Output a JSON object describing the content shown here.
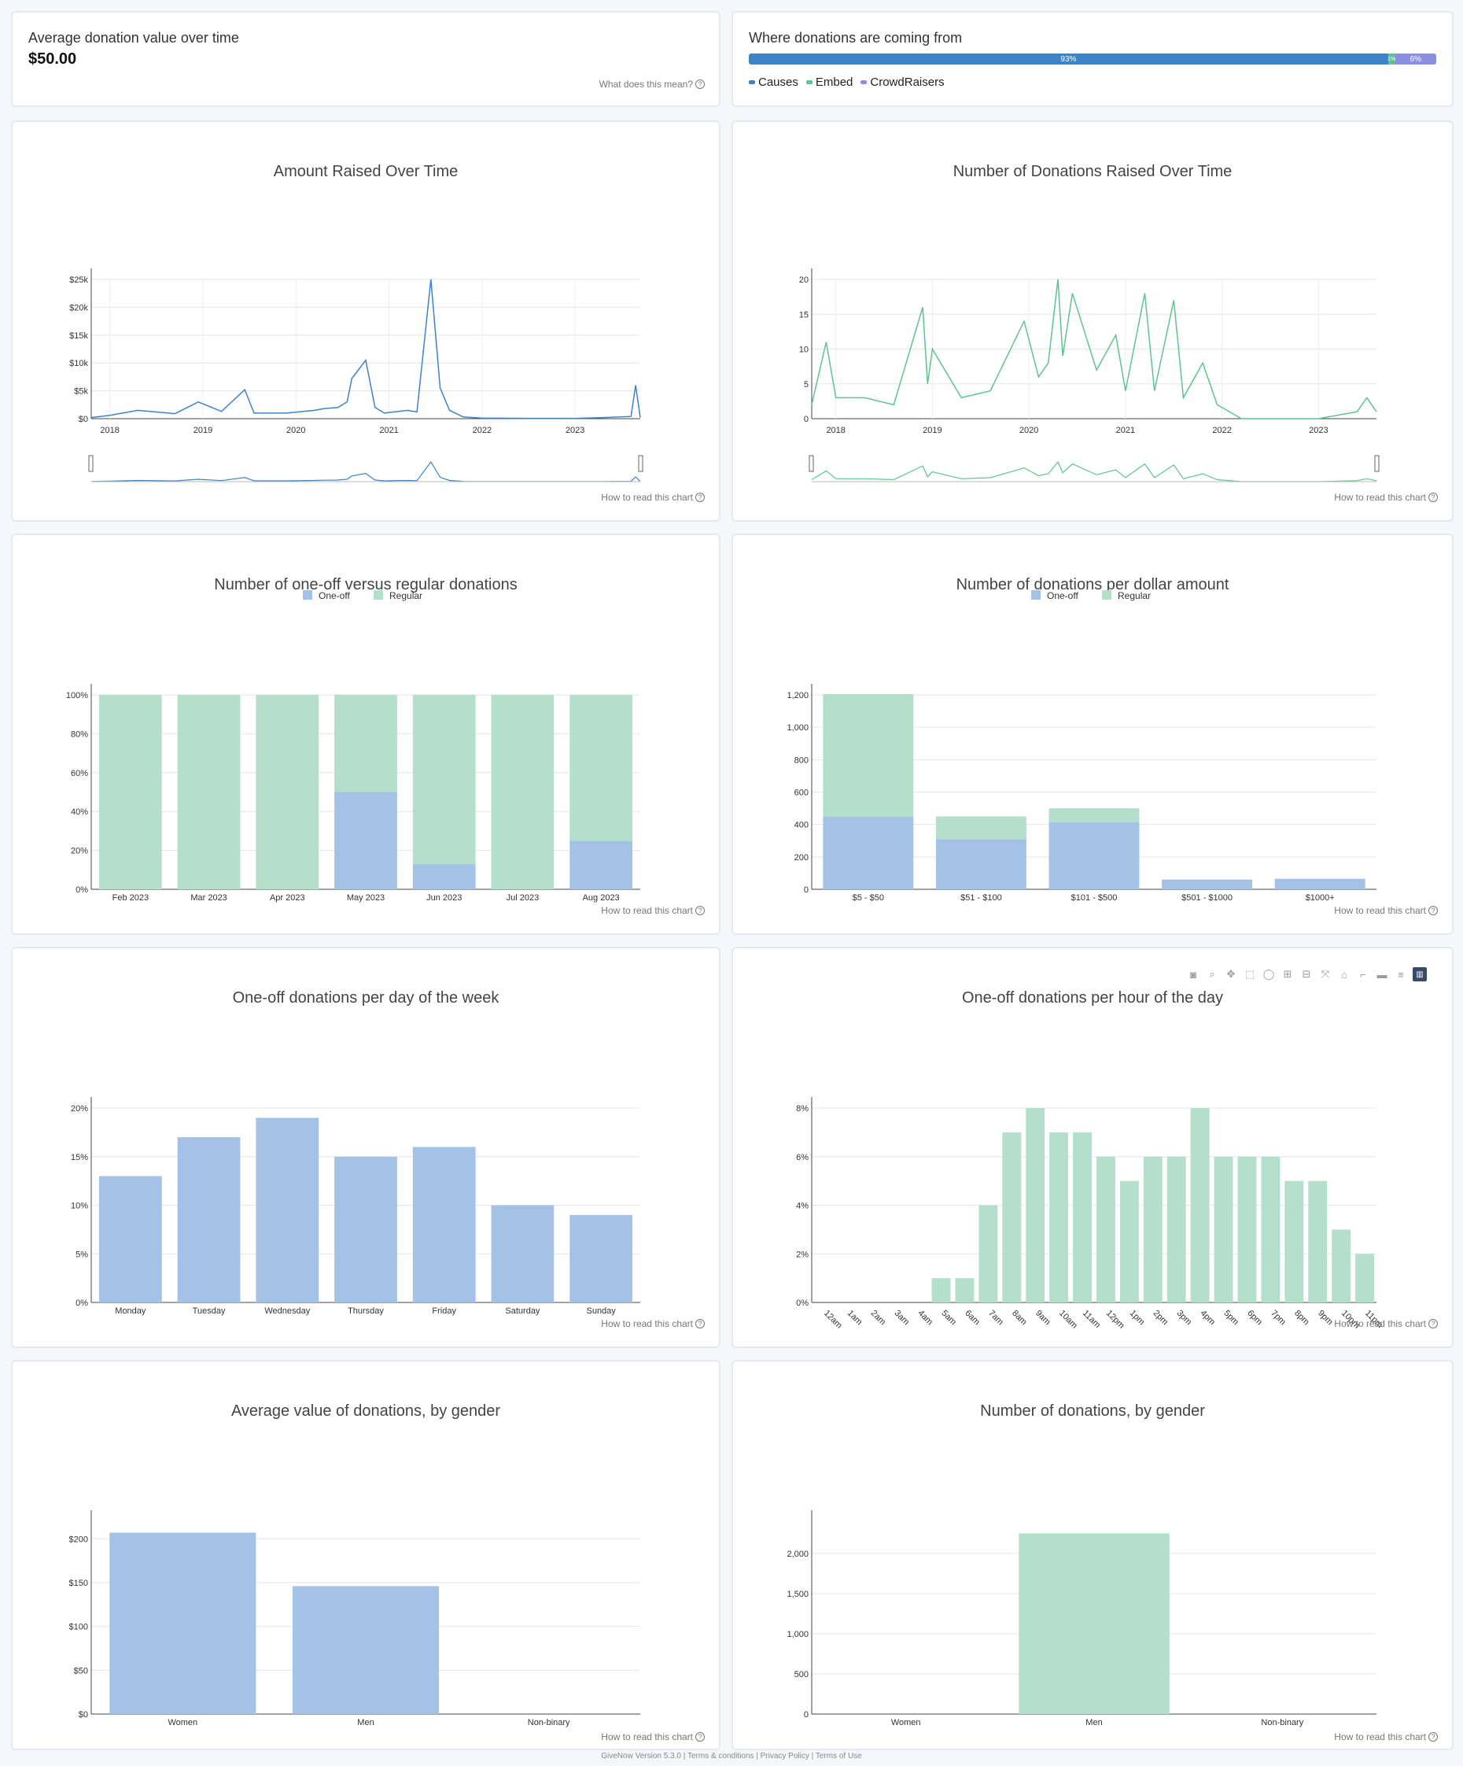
{
  "avg_card": {
    "title": "Average donation value over time",
    "value": "$50.00",
    "help": "What does this mean?"
  },
  "sources_card": {
    "title": "Where donations are coming from",
    "segments": [
      {
        "name": "Causes",
        "pct": 93,
        "label": "93%",
        "color": "#3d84c6"
      },
      {
        "name": "Embed",
        "pct": 1,
        "label": "1%",
        "color": "#5dc48f"
      },
      {
        "name": "CrowdRaisers",
        "pct": 6,
        "label": "6%",
        "color": "#8a8fe0"
      }
    ]
  },
  "help_label": "How to read this chart",
  "chart_data": [
    {
      "id": "amount",
      "type": "line",
      "title": "Amount Raised Over Time",
      "color": "#3d84c6",
      "x_ticks": [
        "2018",
        "2019",
        "2020",
        "2021",
        "2022",
        "2023"
      ],
      "y_ticks": [
        "$0",
        "$5k",
        "$10k",
        "$15k",
        "$20k",
        "$25k"
      ],
      "ylim": [
        0,
        25000
      ],
      "xlim": [
        2017.8,
        2023.7
      ],
      "x": [
        2017.8,
        2018.0,
        2018.3,
        2018.7,
        2018.95,
        2019.2,
        2019.45,
        2019.55,
        2019.9,
        2020.2,
        2020.3,
        2020.45,
        2020.55,
        2020.6,
        2020.75,
        2020.85,
        2020.95,
        2021.2,
        2021.3,
        2021.45,
        2021.55,
        2021.65,
        2021.8,
        2022.0,
        2022.5,
        2023.0,
        2023.3,
        2023.6,
        2023.65,
        2023.7
      ],
      "y": [
        200,
        600,
        1500,
        900,
        3000,
        1300,
        5200,
        1000,
        1000,
        1500,
        1800,
        2000,
        3000,
        7200,
        10500,
        2000,
        1000,
        1500,
        1200,
        25000,
        5500,
        1500,
        300,
        100,
        50,
        50,
        200,
        400,
        6000,
        200
      ]
    },
    {
      "id": "count",
      "type": "line",
      "title": "Number of Donations Raised Over Time",
      "color": "#5dc48f",
      "x_ticks": [
        "2018",
        "2019",
        "2020",
        "2021",
        "2022",
        "2023"
      ],
      "y_ticks": [
        "0",
        "5",
        "10",
        "15",
        "20"
      ],
      "ylim": [
        0,
        20
      ],
      "xlim": [
        2017.75,
        2023.6
      ],
      "x": [
        2017.75,
        2017.9,
        2018.0,
        2018.3,
        2018.6,
        2018.9,
        2018.95,
        2019.0,
        2019.3,
        2019.6,
        2019.95,
        2020.1,
        2020.2,
        2020.3,
        2020.35,
        2020.45,
        2020.7,
        2020.9,
        2021.0,
        2021.2,
        2021.3,
        2021.5,
        2021.6,
        2021.8,
        2021.95,
        2022.2,
        2022.8,
        2023.0,
        2023.4,
        2023.5,
        2023.6
      ],
      "y": [
        2,
        11,
        3,
        3,
        2,
        16,
        5,
        10,
        3,
        4,
        14,
        6,
        8,
        20,
        9,
        18,
        7,
        12,
        4,
        18,
        4,
        17,
        3,
        8,
        2,
        0,
        0,
        0,
        1,
        3,
        1
      ]
    },
    {
      "id": "oneoff-regular",
      "type": "bar",
      "title": "Number of one-off versus regular donations",
      "categories": [
        "Feb 2023",
        "Mar 2023",
        "Apr 2023",
        "May 2023",
        "Jun 2023",
        "Jul 2023",
        "Aug 2023"
      ],
      "y_ticks": [
        "0%",
        "20%",
        "40%",
        "60%",
        "80%",
        "100%"
      ],
      "ylim": [
        0,
        100
      ],
      "series": [
        {
          "name": "One-off",
          "color": "#a4c2e6",
          "values": [
            0,
            0,
            0,
            50,
            13,
            0,
            25
          ]
        },
        {
          "name": "Regular",
          "color": "#b4e0cb",
          "values": [
            100,
            100,
            100,
            50,
            87,
            100,
            75
          ]
        }
      ]
    },
    {
      "id": "per-amount",
      "type": "bar",
      "title": "Number of donations per dollar amount",
      "categories": [
        "$5 - $50",
        "$51 - $100",
        "$101 - $500",
        "$501 - $1000",
        "$1000+"
      ],
      "y_ticks": [
        "0",
        "200",
        "400",
        "600",
        "800",
        "1,000",
        "1,200"
      ],
      "ylim": [
        0,
        1200
      ],
      "series": [
        {
          "name": "One-off",
          "color": "#a4c2e6",
          "values": [
            450,
            310,
            415,
            60,
            65
          ]
        },
        {
          "name": "Regular",
          "color": "#b4e0cb",
          "values": [
            755,
            140,
            85,
            0,
            0
          ]
        }
      ]
    },
    {
      "id": "per-weekday",
      "type": "bar",
      "title": "One-off donations per day of the week",
      "categories": [
        "Monday",
        "Tuesday",
        "Wednesday",
        "Thursday",
        "Friday",
        "Saturday",
        "Sunday"
      ],
      "y_ticks": [
        "0%",
        "5%",
        "10%",
        "15%",
        "20%"
      ],
      "ylim": [
        0,
        20
      ],
      "color": "#a4c2e6",
      "values": [
        13,
        17,
        19,
        15,
        16,
        10,
        9
      ]
    },
    {
      "id": "per-hour",
      "type": "bar",
      "title": "One-off donations per hour of the day",
      "categories": [
        "12am",
        "1am",
        "2am",
        "3am",
        "4am",
        "5am",
        "6am",
        "7am",
        "8am",
        "9am",
        "10am",
        "11am",
        "12pm",
        "1pm",
        "2pm",
        "3pm",
        "4pm",
        "5pm",
        "6pm",
        "7pm",
        "8pm",
        "9pm",
        "10pm",
        "11pm"
      ],
      "y_ticks": [
        "0%",
        "2%",
        "4%",
        "6%",
        "8%"
      ],
      "ylim": [
        0,
        8
      ],
      "color": "#b4e0cb",
      "values": [
        0,
        0,
        0,
        0,
        0,
        1,
        1,
        4,
        7,
        8,
        7,
        7,
        6,
        5,
        6,
        6,
        8,
        6,
        6,
        6,
        5,
        5,
        3,
        2
      ]
    },
    {
      "id": "avg-gender",
      "type": "bar",
      "title": "Average value of donations, by gender",
      "categories": [
        "Women",
        "Men",
        "Non-binary"
      ],
      "y_ticks": [
        "$0",
        "$50",
        "$100",
        "$150",
        "$200"
      ],
      "ylim": [
        0,
        220
      ],
      "color": "#a4c2e6",
      "values": [
        207,
        146,
        0
      ]
    },
    {
      "id": "count-gender",
      "type": "bar",
      "title": "Number of donations, by gender",
      "categories": [
        "Women",
        "Men",
        "Non-binary"
      ],
      "y_ticks": [
        "0",
        "500",
        "1,000",
        "1,500",
        "2,000"
      ],
      "ylim": [
        0,
        2400
      ],
      "color": "#b4e0cb",
      "values": [
        0,
        2250,
        0
      ]
    }
  ],
  "toolbar_icons": [
    "camera-icon",
    "zoom-icon",
    "pan-icon",
    "box-select-icon",
    "lasso-icon",
    "zoom-in-icon",
    "zoom-out-icon",
    "autoscale-icon",
    "reset-axes-icon",
    "spike-lines-icon",
    "hover-closest-icon",
    "hover-compare-icon",
    "plotly-logo-icon"
  ],
  "footer": {
    "version": "GiveNow Version 5.3.0",
    "links": [
      "Terms & conditions",
      "Privacy Policy",
      "Terms of Use"
    ]
  }
}
